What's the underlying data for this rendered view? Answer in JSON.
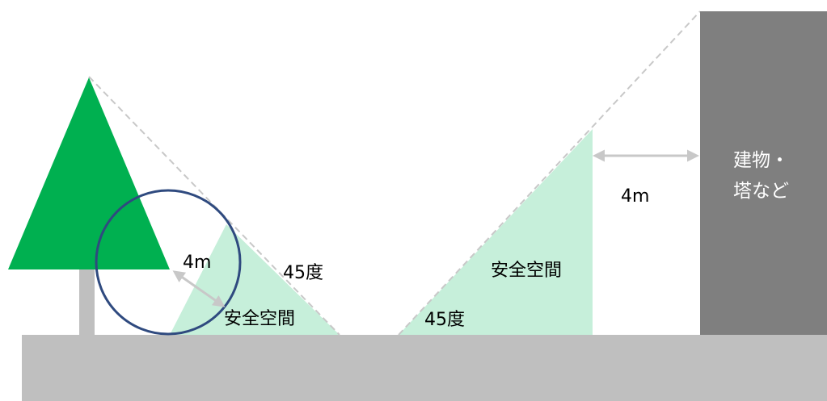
{
  "colors": {
    "background": "#ffffff",
    "ground": "#bfbfbf",
    "tree_canopy": "#00b050",
    "tree_trunk": "#bfbfbf",
    "building": "#7f7f7f",
    "safe_zone": "#c6efda",
    "circle_stroke": "#2f4a7f",
    "dashed_line": "#c8c8c8",
    "arrow": "#c8c8c8",
    "text": "#000000",
    "building_text": "#ffffff"
  },
  "icons": {
    "arrow_tree": "double-arrow-icon",
    "arrow_building": "double-arrow-icon"
  },
  "labels": {
    "tree_radius": "4m",
    "tree_angle": "45度",
    "tree_safe_space": "安全空間",
    "building_angle": "45度",
    "building_safe_space": "安全空間",
    "building_distance": "4m",
    "building_name_line1": "建物・",
    "building_name_line2": "塔など"
  }
}
